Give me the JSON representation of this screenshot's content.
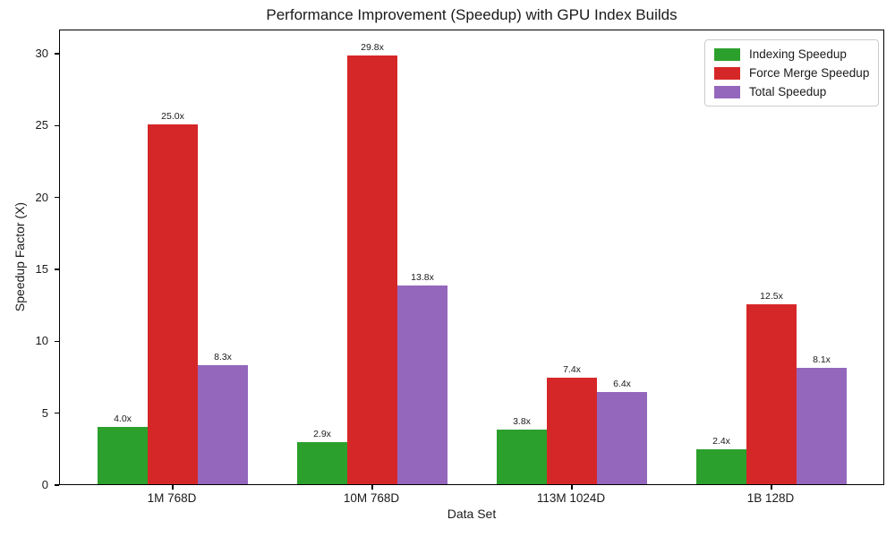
{
  "chart_data": {
    "type": "bar",
    "title": "Performance Improvement (Speedup) with GPU Index Builds",
    "xlabel": "Data Set",
    "ylabel": "Speedup Factor (X)",
    "categories": [
      "1M 768D",
      "10M 768D",
      "113M 1024D",
      "1B 128D"
    ],
    "series": [
      {
        "name": "Indexing Speedup",
        "color": "#2ca02c",
        "values": [
          4.0,
          2.9,
          3.8,
          2.4
        ],
        "labels": [
          "4.0x",
          "2.9x",
          "3.8x",
          "2.4x"
        ]
      },
      {
        "name": "Force Merge Speedup",
        "color": "#d62728",
        "values": [
          25.0,
          29.8,
          7.4,
          12.5
        ],
        "labels": [
          "25.0x",
          "29.8x",
          "7.4x",
          "12.5x"
        ]
      },
      {
        "name": "Total Speedup",
        "color": "#9467bd",
        "values": [
          8.3,
          13.8,
          6.4,
          8.1
        ],
        "labels": [
          "8.3x",
          "13.8x",
          "6.4x",
          "8.1x"
        ]
      }
    ],
    "yticks": [
      0,
      5,
      10,
      15,
      20,
      25,
      30
    ],
    "ylim": [
      0,
      31.68
    ],
    "grid": false,
    "legend_position": "upper right",
    "background_color": "#ffffff",
    "text_color": "#1a1a1a"
  }
}
